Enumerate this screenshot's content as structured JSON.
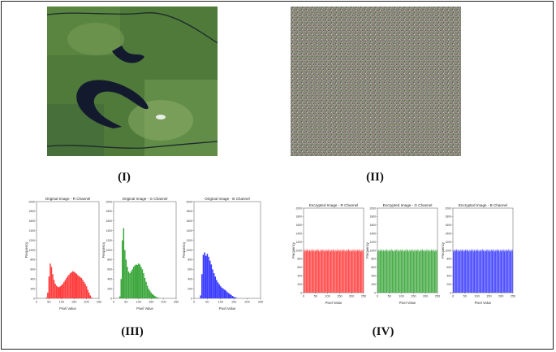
{
  "panel_labels": {
    "i": "(I)",
    "ii": "(II)",
    "iii": "(III)",
    "iv": "(IV)"
  },
  "images": {
    "original": {
      "description_icon": "satellite-river-image"
    },
    "encrypted": {
      "description_icon": "noise-image"
    }
  },
  "colors": {
    "r": "#ff3b3b",
    "g": "#3aa63a",
    "b": "#3b3bff",
    "frame": "#222222"
  },
  "chart_data": [
    {
      "type": "bar",
      "title": "Original Image - R Channel",
      "xlabel": "Pixel Value",
      "ylabel": "Frequency",
      "xlim": [
        0,
        250
      ],
      "ylim": [
        0,
        2000
      ],
      "color": "#ff3b3b",
      "xticks": [
        0,
        50,
        100,
        150,
        200,
        250
      ],
      "yticks": [
        0,
        200,
        400,
        600,
        800,
        1000,
        1200,
        1400,
        1600,
        1800,
        2000
      ],
      "x": [
        40,
        45,
        50,
        55,
        60,
        65,
        70,
        75,
        80,
        85,
        90,
        95,
        100,
        105,
        110,
        115,
        120,
        125,
        130,
        135,
        140,
        145,
        150,
        155,
        160,
        165,
        170,
        175,
        180,
        185,
        190,
        195,
        200,
        205,
        210,
        215,
        220
      ],
      "values": [
        20,
        120,
        450,
        720,
        650,
        500,
        380,
        300,
        260,
        240,
        230,
        250,
        270,
        300,
        340,
        380,
        420,
        460,
        490,
        520,
        540,
        560,
        550,
        530,
        510,
        480,
        460,
        440,
        420,
        380,
        340,
        300,
        250,
        180,
        120,
        60,
        20
      ]
    },
    {
      "type": "bar",
      "title": "Original Image - G Channel",
      "xlabel": "Pixel Value",
      "ylabel": "Frequency",
      "xlim": [
        0,
        250
      ],
      "ylim": [
        0,
        2000
      ],
      "color": "#3aa63a",
      "xticks": [
        0,
        50,
        100,
        150,
        200,
        250
      ],
      "yticks": [
        0,
        200,
        400,
        600,
        800,
        1000,
        1200,
        1400,
        1600,
        1800,
        2000
      ],
      "x": [
        25,
        30,
        35,
        40,
        45,
        50,
        55,
        60,
        65,
        70,
        75,
        80,
        85,
        90,
        95,
        100,
        105,
        110,
        115,
        120,
        125,
        130,
        135,
        140,
        145,
        150,
        155,
        160,
        165,
        170,
        175,
        180
      ],
      "values": [
        40,
        400,
        1200,
        1450,
        1000,
        800,
        650,
        550,
        520,
        560,
        600,
        650,
        680,
        700,
        690,
        720,
        700,
        650,
        600,
        520,
        420,
        340,
        260,
        200,
        160,
        120,
        90,
        70,
        50,
        30,
        20,
        10
      ]
    },
    {
      "type": "bar",
      "title": "Original Image - B Channel",
      "xlabel": "Pixel Value",
      "ylabel": "Frequency",
      "xlim": [
        0,
        250
      ],
      "ylim": [
        0,
        2000
      ],
      "color": "#3b3bff",
      "xticks": [
        0,
        50,
        100,
        150,
        200,
        250
      ],
      "yticks": [
        0,
        200,
        400,
        600,
        800,
        1000,
        1200,
        1400,
        1600,
        1800,
        2000
      ],
      "x": [
        25,
        30,
        35,
        40,
        45,
        50,
        55,
        60,
        65,
        70,
        75,
        80,
        85,
        90,
        95,
        100,
        105,
        110,
        115,
        120,
        125,
        130,
        135,
        140,
        145,
        150,
        155,
        160
      ],
      "values": [
        60,
        500,
        900,
        950,
        880,
        920,
        860,
        780,
        700,
        600,
        520,
        450,
        380,
        330,
        290,
        250,
        220,
        200,
        180,
        160,
        130,
        110,
        90,
        70,
        50,
        30,
        20,
        10
      ]
    },
    {
      "type": "bar",
      "title": "Encrypted Image - R Channel",
      "xlabel": "Pixel Value",
      "ylabel": "Frequency",
      "xlim": [
        0,
        250
      ],
      "ylim": [
        0,
        2000
      ],
      "color": "#ff3b3b",
      "uniform_level": 1000,
      "xticks": [
        0,
        50,
        100,
        150,
        200,
        250
      ],
      "yticks": [
        0,
        200,
        400,
        600,
        800,
        1000,
        1200,
        1400,
        1600,
        1800,
        2000
      ]
    },
    {
      "type": "bar",
      "title": "Encrypted Image - G Channel",
      "xlabel": "Pixel Value",
      "ylabel": "Frequency",
      "xlim": [
        0,
        250
      ],
      "ylim": [
        0,
        2000
      ],
      "color": "#3aa63a",
      "uniform_level": 1000,
      "xticks": [
        0,
        50,
        100,
        150,
        200,
        250
      ],
      "yticks": [
        0,
        200,
        400,
        600,
        800,
        1000,
        1200,
        1400,
        1600,
        1800,
        2000
      ]
    },
    {
      "type": "bar",
      "title": "Encrypted Image - B Channel",
      "xlabel": "Pixel Value",
      "ylabel": "Frequency",
      "xlim": [
        0,
        250
      ],
      "ylim": [
        0,
        2000
      ],
      "color": "#3b3bff",
      "uniform_level": 1000,
      "xticks": [
        0,
        50,
        100,
        150,
        200,
        250
      ],
      "yticks": [
        0,
        200,
        400,
        600,
        800,
        1000,
        1200,
        1400,
        1600,
        1800,
        2000
      ]
    }
  ]
}
